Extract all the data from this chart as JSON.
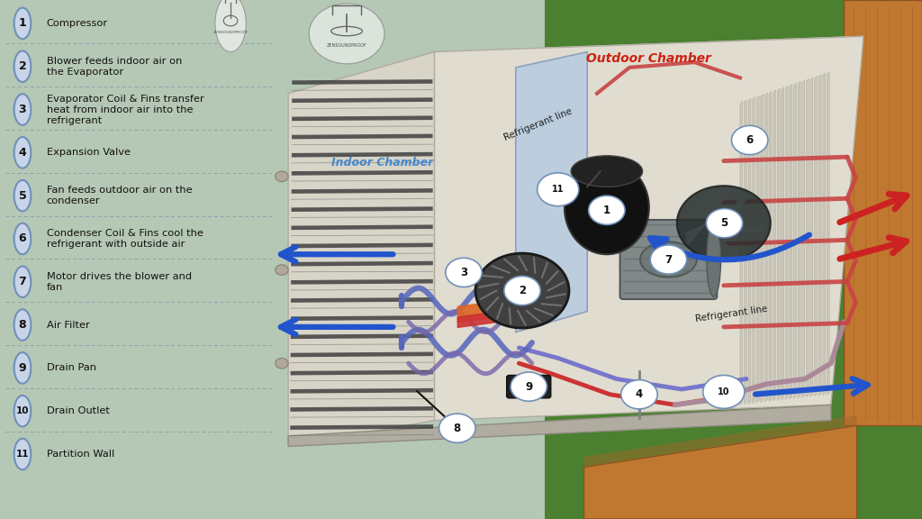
{
  "bg_color": "#b5c8b5",
  "legend_items": [
    {
      "num": "1",
      "text": "Compressor"
    },
    {
      "num": "2",
      "text": "Blower feeds indoor air on\nthe Evaporator"
    },
    {
      "num": "3",
      "text": "Evaporator Coil & Fins transfer\nheat from indoor air into the\nrefrigerant"
    },
    {
      "num": "4",
      "text": "Expansion Valve"
    },
    {
      "num": "5",
      "text": "Fan feeds outdoor air on the\ncondenser"
    },
    {
      "num": "6",
      "text": "Condenser Coil & Fins cool the\nrefrigerant with outside air"
    },
    {
      "num": "7",
      "text": "Motor drives the blower and\nfan"
    },
    {
      "num": "8",
      "text": "Air Filter"
    },
    {
      "num": "9",
      "text": "Drain Pan"
    },
    {
      "num": "10",
      "text": "Drain Outlet"
    },
    {
      "num": "11",
      "text": "Partition Wall"
    }
  ],
  "circle_bg": "#c8d4e8",
  "circle_edge": "#7090b8",
  "text_color": "#111111",
  "dashed_color": "#8099aa",
  "indoor_label": "Indoor Chamber",
  "outdoor_label": "Outdoor Chamber",
  "indoor_label_color": "#4488cc",
  "outdoor_label_color": "#cc2211",
  "refrigerant_line_label1": "Refrigerant line",
  "refrigerant_line_label2": "Refrigerant line",
  "logo_text": "ZENSOUNDPROOF",
  "grass_color": "#4a8030",
  "grass_color2": "#3a6822",
  "wood_color": "#c07830",
  "wood_dark": "#8a5020",
  "ac_body_color": "#e0dcd0",
  "ac_top_color": "#f0ece0",
  "ac_front_color": "#d0ccc0",
  "ac_shadow": "#b0aca0",
  "grill_color": "#404040",
  "fin_color": "#c8c4b8",
  "fin_edge": "#aaa898",
  "partition_color": "#b8cce0",
  "partition_edge": "#8899bb",
  "coil_red": "#c84444",
  "coil_blue": "#6677bb",
  "coil_mauve": "#8877aa",
  "compressor_color": "#1a1a1a",
  "motor_color": "#808888",
  "blower_color": "#505050",
  "fan_color": "#303838",
  "valve_color": "#c89020",
  "drain_color": "#282828",
  "arrow_blue": "#2255cc",
  "arrow_red": "#cc2222",
  "label_line_color": "#111111",
  "white": "#ffffff",
  "num_bg": "#ffffff",
  "num_bg2": "#ddeeff"
}
